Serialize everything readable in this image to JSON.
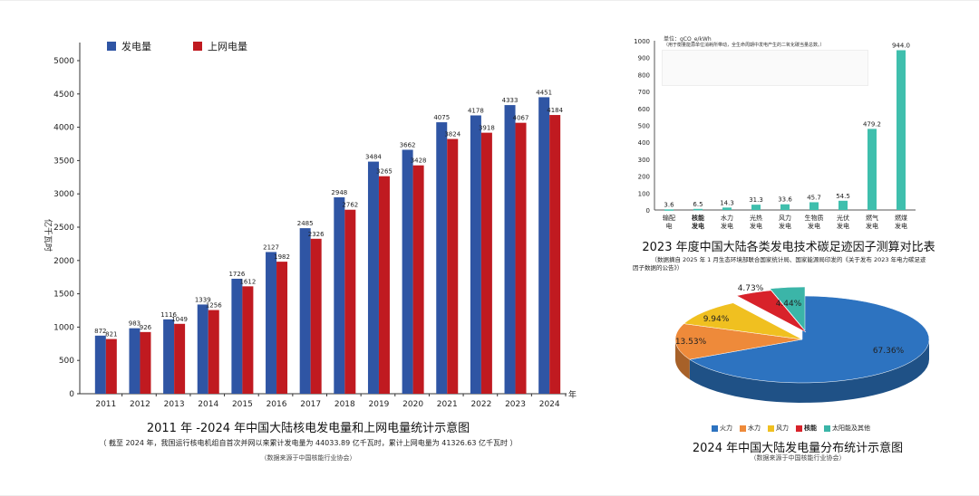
{
  "chart_data": [
    {
      "type": "bar",
      "title": "2011 年 -2024 年中国大陆核电发电量和上网电量统计示意图",
      "subtitle": "（ 截至 2024 年，我国运行核电机组自首次并网以来累计发电量为 44033.89 亿千瓦时，累计上网电量为 41326.63 亿千瓦时 ）",
      "source": "（数据来源于中国核能行业协会）",
      "ylabel": "亿千瓦时",
      "xlabel": "年",
      "ylim": [
        0,
        5000
      ],
      "yticks": [
        "0",
        "500",
        "1000",
        "1500",
        "2000",
        "2500",
        "3000",
        "3500",
        "4000",
        "4500",
        "5000"
      ],
      "categories": [
        "2011",
        "2012",
        "2013",
        "2014",
        "2015",
        "2016",
        "2017",
        "2018",
        "2019",
        "2020",
        "2021",
        "2022",
        "2023",
        "2024"
      ],
      "series": [
        {
          "name": "发电量",
          "color": "#2f55a4",
          "values": [
            872,
            983,
            1116,
            1339,
            1726,
            2127,
            2485,
            2948,
            3484,
            3662,
            4075,
            4178,
            4333,
            4451
          ]
        },
        {
          "name": "上网电量",
          "color": "#c01a20",
          "values": [
            821,
            926,
            1049,
            1256,
            1612,
            1982,
            2326,
            2762,
            3265,
            3428,
            3824,
            3918,
            4067,
            4184
          ]
        }
      ],
      "legend": "top-left",
      "grid": false
    },
    {
      "type": "bar",
      "title": "2023 年度中国大陆各类发电技术碳足迹因子测算对比表",
      "subtitle_line1": "（数据摘自 2025 年 1 月生态环境部联合国家统计局、国家能源局印发的《关于发布 2023 年电力碳足迹",
      "subtitle_line2": "因子数据的公告》）",
      "unit_label": "单位：gCO_e/kWh",
      "note_line": "（用于衡量能源单位消耗所带动，全生命周期中发电产生的二氧化碳当量总数。）",
      "ylim": [
        0,
        1000
      ],
      "yticks": [
        "0",
        "100",
        "200",
        "300",
        "400",
        "500",
        "600",
        "700",
        "800",
        "900",
        "1000"
      ],
      "categories": [
        [
          "输配",
          "电"
        ],
        [
          "核能",
          "发电"
        ],
        [
          "水力",
          "发电"
        ],
        [
          "光热",
          "发电"
        ],
        [
          "风力",
          "发电"
        ],
        [
          "生物质",
          "发电"
        ],
        [
          "光伏",
          "发电"
        ],
        [
          "燃气",
          "发电"
        ],
        [
          "燃煤",
          "发电"
        ]
      ],
      "values": [
        3.6,
        6.5,
        14.3,
        31.3,
        33.6,
        45.7,
        54.5,
        479.2,
        944.0
      ],
      "value_labels": [
        "3.6",
        "6.5",
        "14.3",
        "31.3",
        "33.6",
        "45.7",
        "54.5",
        "479.2",
        "944.0"
      ],
      "color": "#3fbfad",
      "grid": false
    },
    {
      "type": "pie",
      "title": "2024 年中国大陆发电量分布统计示意图",
      "source": "（数据来源于中国核能行业协会）",
      "slices": [
        {
          "label": "火力",
          "value": 67.36,
          "text": "67.36%",
          "color": "#2d73c0"
        },
        {
          "label": "水力",
          "value": 13.53,
          "text": "13.53%",
          "color": "#ee8a3a"
        },
        {
          "label": "风力",
          "value": 9.94,
          "text": "9.94%",
          "color": "#f0c020"
        },
        {
          "label": "核能",
          "value": 4.73,
          "text": "4.73%",
          "color": "#d8222a"
        },
        {
          "label": "太阳能及其他",
          "value": 4.44,
          "text": "4.44%",
          "color": "#3bb5a8"
        }
      ],
      "legend": "bottom"
    }
  ]
}
